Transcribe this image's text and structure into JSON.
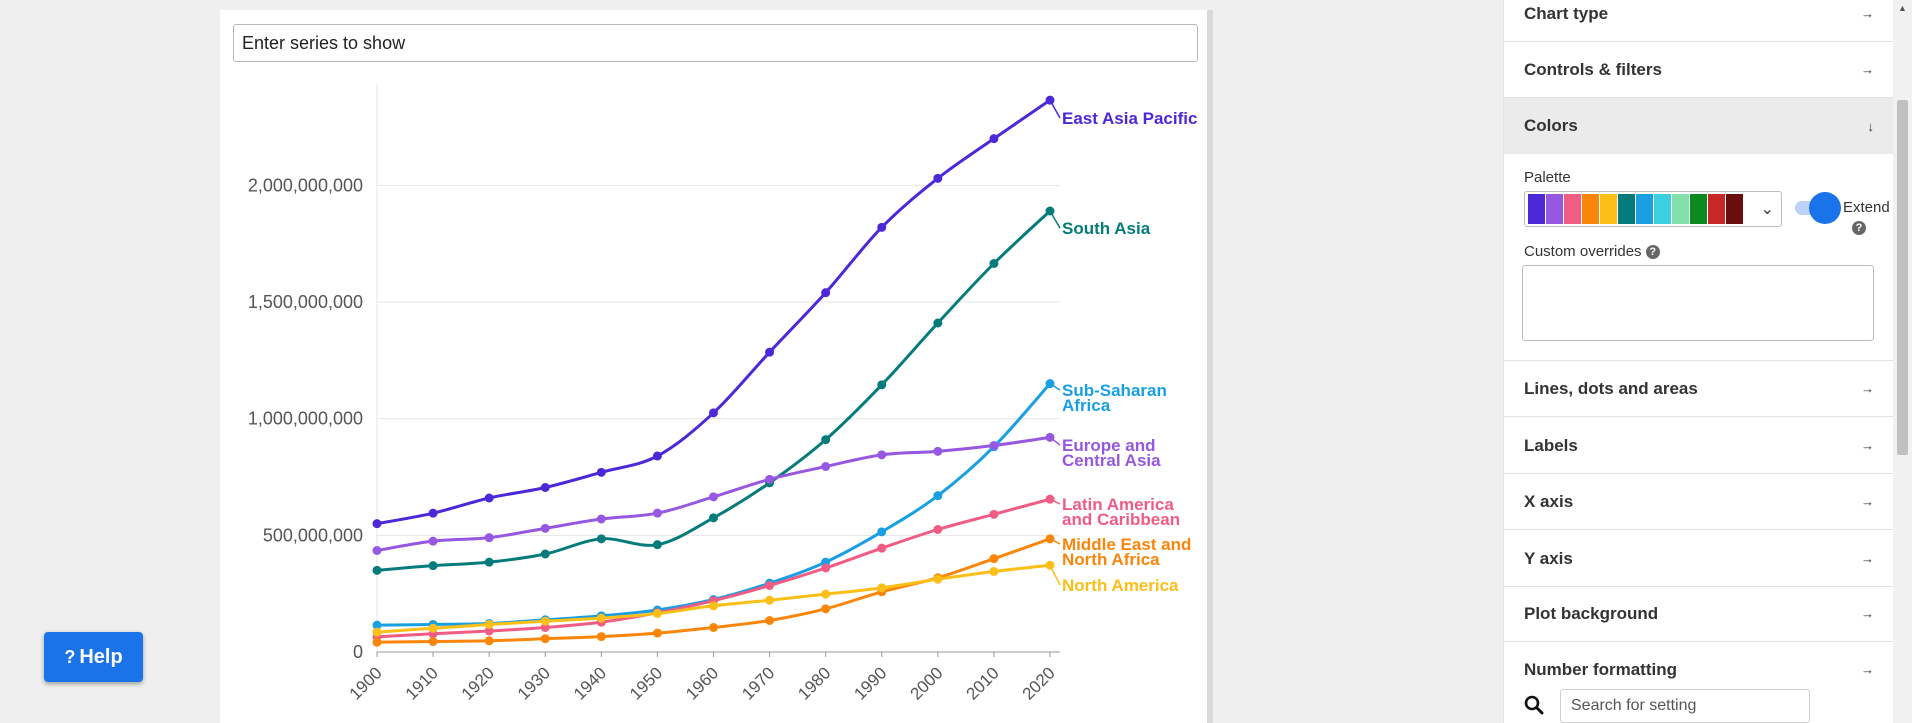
{
  "series_input": {
    "placeholder": "Enter series to show"
  },
  "help": {
    "label": "Help",
    "glyph": "?"
  },
  "chart_data": {
    "type": "line",
    "x": [
      1900,
      1910,
      1920,
      1930,
      1940,
      1950,
      1960,
      1970,
      1980,
      1990,
      2000,
      2010,
      2020
    ],
    "ylim": [
      0,
      2400000000
    ],
    "xlim": [
      1900,
      2020
    ],
    "yticks": [
      0,
      500000000,
      1000000000,
      1500000000,
      2000000000
    ],
    "ytick_labels": [
      "0",
      "500,000,000",
      "1,000,000,000",
      "1,500,000,000",
      "2,000,000,000"
    ],
    "xtick_labels": [
      "1900",
      "1910",
      "1920",
      "1930",
      "1940",
      "1950",
      "1960",
      "1970",
      "1980",
      "1990",
      "2000",
      "2010",
      "2020"
    ],
    "grid": "horizontal",
    "legend": "direct labels at line ends",
    "series": [
      {
        "name": "East Asia Pacific",
        "label_lines": [
          "East Asia Pacific"
        ],
        "color": "#4c28d9",
        "values": [
          550000000,
          595000000,
          660000000,
          705000000,
          770000000,
          840000000,
          1025000000,
          1285000000,
          1540000000,
          1820000000,
          2030000000,
          2200000000,
          2365000000
        ]
      },
      {
        "name": "South Asia",
        "label_lines": [
          "South Asia"
        ],
        "color": "#067b7c",
        "values": [
          350000000,
          370000000,
          385000000,
          420000000,
          485000000,
          460000000,
          575000000,
          725000000,
          910000000,
          1145000000,
          1410000000,
          1665000000,
          1890000000
        ]
      },
      {
        "name": "Sub-Saharan Africa",
        "label_lines": [
          "Sub-Saharan",
          "Africa"
        ],
        "color": "#199fe2",
        "values": [
          115000000,
          118000000,
          122000000,
          138000000,
          155000000,
          180000000,
          225000000,
          295000000,
          385000000,
          515000000,
          670000000,
          880000000,
          1150000000
        ]
      },
      {
        "name": "Europe and Central Asia",
        "label_lines": [
          "Europe and",
          "Central Asia"
        ],
        "color": "#9657e1",
        "values": [
          435000000,
          475000000,
          490000000,
          530000000,
          570000000,
          595000000,
          665000000,
          740000000,
          795000000,
          845000000,
          860000000,
          885000000,
          920000000
        ]
      },
      {
        "name": "Latin America and Caribbean",
        "label_lines": [
          "Latin America",
          "and Caribbean"
        ],
        "color": "#f05c84",
        "values": [
          65000000,
          78000000,
          90000000,
          105000000,
          128000000,
          168000000,
          220000000,
          285000000,
          360000000,
          445000000,
          525000000,
          590000000,
          655000000
        ]
      },
      {
        "name": "Middle East and North Africa",
        "label_lines": [
          "Middle East and",
          "North Africa"
        ],
        "color": "#f9860b",
        "values": [
          42000000,
          45000000,
          48000000,
          57000000,
          66000000,
          81000000,
          105000000,
          135000000,
          185000000,
          258000000,
          318000000,
          400000000,
          485000000
        ]
      },
      {
        "name": "North America",
        "label_lines": [
          "North America"
        ],
        "color": "#fbbf18",
        "values": [
          85000000,
          102000000,
          118000000,
          132000000,
          145000000,
          165000000,
          198000000,
          222000000,
          248000000,
          275000000,
          312000000,
          345000000,
          372000000
        ]
      }
    ]
  },
  "panel": {
    "sections": [
      {
        "label": "Chart type",
        "arrow": "→"
      },
      {
        "label": "Controls & filters",
        "arrow": "→"
      },
      {
        "label": "Colors",
        "arrow": "↓"
      },
      {
        "label": "Lines, dots and areas",
        "arrow": "→"
      },
      {
        "label": "Labels",
        "arrow": "→"
      },
      {
        "label": "X axis",
        "arrow": "→"
      },
      {
        "label": "Y axis",
        "arrow": "→"
      },
      {
        "label": "Plot background",
        "arrow": "→"
      },
      {
        "label": "Number formatting",
        "arrow": "→"
      }
    ],
    "colors": {
      "palette_label": "Palette",
      "palette": [
        "#4c28d9",
        "#9657e1",
        "#f05c84",
        "#f9860b",
        "#fbbf18",
        "#067b7c",
        "#199fe2",
        "#3ccfe0",
        "#80e0a8",
        "#0d8a1f",
        "#c62828",
        "#6b0d0d"
      ],
      "extend_label": "Extend",
      "extend_on": true,
      "overrides_label": "Custom overrides"
    },
    "search": {
      "placeholder": "Search for setting"
    }
  }
}
